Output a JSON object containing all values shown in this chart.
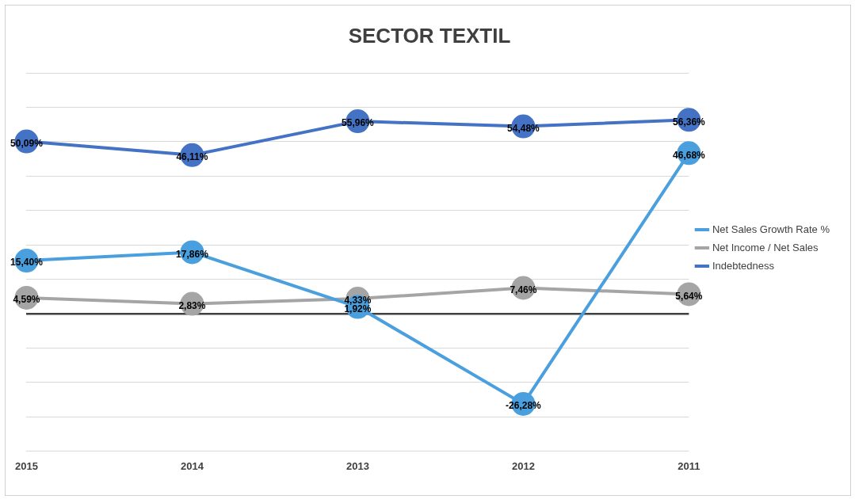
{
  "chart_data": {
    "type": "line",
    "title": "SECTOR TEXTIL",
    "categories": [
      "2015",
      "2014",
      "2013",
      "2012",
      "2011"
    ],
    "series": [
      {
        "name": "Net Sales Growth Rate %",
        "color": "#4a9fde",
        "values": [
          15.4,
          17.86,
          1.92,
          -26.28,
          46.68
        ],
        "value_labels": [
          "15,40%",
          "17,86%",
          "1,92%",
          "-26,28%",
          "46,68%"
        ]
      },
      {
        "name": "Net Income / Net Sales",
        "color": "#a5a5a5",
        "values": [
          4.59,
          2.83,
          4.33,
          7.46,
          5.64
        ],
        "value_labels": [
          "4,59%",
          "2,83%",
          "4,33%",
          "7,46%",
          "5,64%"
        ]
      },
      {
        "name": "Indebtedness",
        "color": "#4472c4",
        "values": [
          50.09,
          46.11,
          55.96,
          54.48,
          56.36
        ],
        "value_labels": [
          "50,09%",
          "46,11%",
          "55,96%",
          "54,48%",
          "56,36%"
        ]
      }
    ],
    "ylim": [
      -40,
      70
    ],
    "yticks": [
      {
        "value": -40,
        "label": null
      },
      {
        "value": -30,
        "label": null
      },
      {
        "value": -20,
        "label": null
      },
      {
        "value": -10,
        "label": null
      },
      {
        "value": 0,
        "label": null
      },
      {
        "value": 10,
        "label": null
      },
      {
        "value": 20,
        "label": null
      },
      {
        "value": 30,
        "label": null
      },
      {
        "value": 40,
        "label": null
      },
      {
        "value": 50,
        "label": null
      },
      {
        "value": 60,
        "label": null
      },
      {
        "value": 70,
        "label": null
      }
    ],
    "tick_labels": "x",
    "grid": "y",
    "legend": "right",
    "marker": "circle",
    "line_style": "solid"
  }
}
